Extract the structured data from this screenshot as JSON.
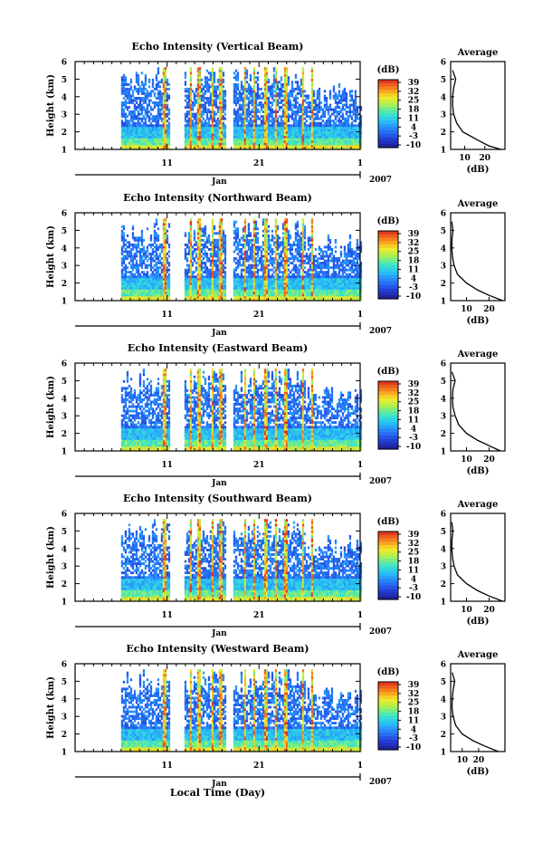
{
  "figure": {
    "xlabel": "Local Time (Day)",
    "month_label": "Jan",
    "year_label": "2007",
    "x_tick_labels": [
      "11",
      "21",
      "1"
    ],
    "ylabel": "Height (km)",
    "y_tick_labels": [
      "1",
      "2",
      "3",
      "4",
      "5",
      "6"
    ],
    "colorbar": {
      "unit": "(dB)",
      "tick_labels": [
        "39",
        "32",
        "25",
        "18",
        "11",
        "4",
        "-3",
        "-10"
      ]
    },
    "side_title": "Average",
    "side_xlabel": "(dB)",
    "side_x_tick_labels": [
      "10",
      "20"
    ]
  },
  "chart_data": [
    {
      "type": "heatmap",
      "title": "Echo Intensity (Vertical Beam)",
      "xlabel": "Local Time (Day)",
      "ylabel": "Height (km)",
      "x_range_days": [
        1,
        32
      ],
      "ylim": [
        1,
        6
      ],
      "colorbar_range_db": [
        -10,
        39
      ],
      "average_profile": {
        "title": "Average",
        "xlabel": "(dB)",
        "xlim": [
          3,
          30
        ],
        "height_km": [
          1.0,
          1.2,
          1.5,
          2.0,
          2.5,
          3.0,
          3.5,
          4.0,
          4.5,
          5.0,
          5.5
        ],
        "value_db": [
          28,
          22,
          17,
          9,
          6,
          4.5,
          4,
          4,
          4.5,
          5.5,
          4
        ]
      }
    },
    {
      "type": "heatmap",
      "title": "Echo Intensity (Northward Beam)",
      "xlabel": "Local Time (Day)",
      "ylabel": "Height (km)",
      "x_range_days": [
        1,
        32
      ],
      "ylim": [
        1,
        6
      ],
      "colorbar_range_db": [
        -10,
        39
      ],
      "average_profile": {
        "title": "Average",
        "xlabel": "(dB)",
        "xlim": [
          3,
          27
        ],
        "height_km": [
          1.0,
          1.3,
          1.6,
          2.0,
          2.5,
          3.0,
          3.5,
          4.0,
          4.5,
          5.0,
          5.5
        ],
        "value_db": [
          26,
          20,
          15,
          10,
          6,
          4.5,
          3.8,
          3.5,
          3.6,
          4,
          3.5
        ]
      }
    },
    {
      "type": "heatmap",
      "title": "Echo Intensity (Eastward Beam)",
      "xlabel": "Local Time (Day)",
      "ylabel": "Height (km)",
      "x_range_days": [
        1,
        32
      ],
      "ylim": [
        1,
        6
      ],
      "colorbar_range_db": [
        -10,
        39
      ],
      "average_profile": {
        "title": "Average",
        "xlabel": "(dB)",
        "xlim": [
          3,
          27
        ],
        "height_km": [
          1.0,
          1.3,
          1.6,
          2.0,
          2.5,
          3.0,
          3.5,
          4.0,
          4.5,
          5.0,
          5.5
        ],
        "value_db": [
          25,
          20,
          15,
          10,
          6.5,
          5,
          4,
          3.8,
          4,
          5,
          3.5
        ]
      }
    },
    {
      "type": "heatmap",
      "title": "Echo Intensity (Southward Beam)",
      "xlabel": "Local Time (Day)",
      "ylabel": "Height (km)",
      "x_range_days": [
        1,
        32
      ],
      "ylim": [
        1,
        6
      ],
      "colorbar_range_db": [
        -10,
        39
      ],
      "average_profile": {
        "title": "Average",
        "xlabel": "(dB)",
        "xlim": [
          3,
          27
        ],
        "height_km": [
          1.0,
          1.3,
          1.6,
          2.0,
          2.5,
          3.0,
          3.5,
          4.0,
          4.5,
          5.0,
          5.5
        ],
        "value_db": [
          26,
          20,
          15,
          10,
          6,
          4.5,
          3.8,
          3.5,
          3.6,
          4,
          3.5
        ]
      }
    },
    {
      "type": "heatmap",
      "title": "Echo Intensity (Westward Beam)",
      "xlabel": "Local Time (Day)",
      "ylabel": "Height (km)",
      "x_range_days": [
        1,
        32
      ],
      "ylim": [
        1,
        6
      ],
      "colorbar_range_db": [
        -10,
        39
      ],
      "average_profile": {
        "title": "Average",
        "xlabel": "(dB)",
        "xlim": [
          3,
          36
        ],
        "height_km": [
          1.0,
          1.3,
          1.6,
          2.0,
          2.5,
          3.0,
          3.5,
          4.0,
          4.5,
          5.0,
          5.5
        ],
        "value_db": [
          32,
          24,
          17,
          10,
          6,
          4.5,
          3.8,
          4,
          4.5,
          5.5,
          4
        ]
      }
    }
  ]
}
